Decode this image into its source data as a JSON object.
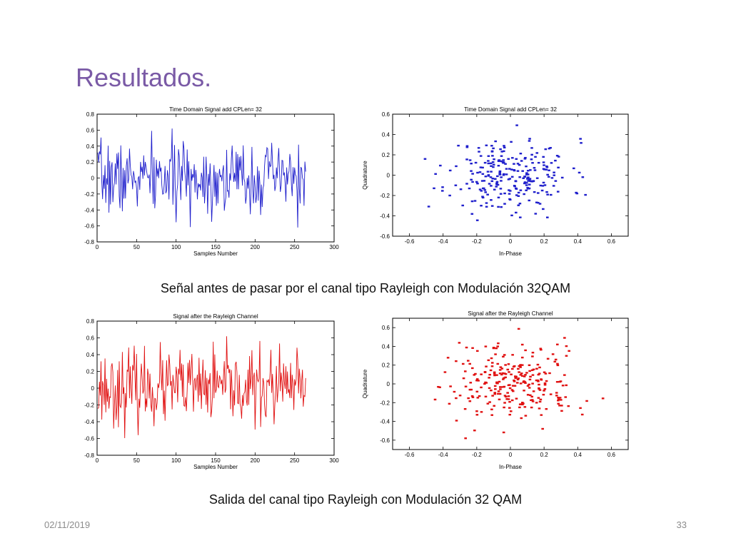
{
  "slide": {
    "title": "Resultados.",
    "caption_top": "Señal antes de pasar por el canal tipo Rayleigh con Modulación 32QAM",
    "caption_bottom": "Salida del canal tipo Rayleigh con Modulación 32 QAM",
    "date": "02/11/2019",
    "page_number": "33"
  },
  "chart_data": [
    {
      "type": "line",
      "title": "Time Domain Signal add CPLen= 32",
      "xlabel": "Samples Number",
      "ylabel": "",
      "xlim": [
        0,
        300
      ],
      "ylim": [
        -0.8,
        0.8
      ],
      "xticks": [
        0,
        50,
        100,
        150,
        200,
        250,
        300
      ],
      "yticks": [
        -0.8,
        -0.6,
        -0.4,
        -0.2,
        0,
        0.2,
        0.4,
        0.6,
        0.8
      ],
      "color": "#1f1fcc",
      "series": [
        {
          "x_start": 1,
          "x_end": 264,
          "noise_level": 0.22,
          "seed": 7
        }
      ]
    },
    {
      "type": "scatter",
      "title": "Time Domain Signal add CPLen= 32",
      "xlabel": "In-Phase",
      "ylabel": "Quadrature",
      "xlim": [
        -0.7,
        0.7
      ],
      "ylim": [
        -0.6,
        0.6
      ],
      "xticks": [
        -0.6,
        -0.4,
        -0.2,
        0,
        0.2,
        0.4,
        0.6
      ],
      "yticks": [
        -0.6,
        -0.4,
        -0.2,
        0,
        0.2,
        0.4,
        0.6
      ],
      "color": "#1f1fcc",
      "series": [
        {
          "n_points": 260,
          "spread": 0.18,
          "seed": 11
        }
      ]
    },
    {
      "type": "line",
      "title": "Signal after the Rayleigh Channel",
      "xlabel": "Samples Number",
      "ylabel": "",
      "xlim": [
        0,
        300
      ],
      "ylim": [
        -0.8,
        0.8
      ],
      "xticks": [
        0,
        50,
        100,
        150,
        200,
        250,
        300
      ],
      "yticks": [
        -0.8,
        -0.6,
        -0.4,
        -0.2,
        0,
        0.2,
        0.4,
        0.6,
        0.8
      ],
      "color": "#e01010",
      "series": [
        {
          "x_start": 1,
          "x_end": 264,
          "noise_level": 0.22,
          "seed": 23
        }
      ]
    },
    {
      "type": "scatter",
      "title": "Signal after the Rayleigh Channel",
      "xlabel": "In-Phase",
      "ylabel": "Quadrature",
      "xlim": [
        -0.7,
        0.7
      ],
      "ylim": [
        -0.7,
        0.7
      ],
      "xticks": [
        -0.6,
        -0.4,
        -0.2,
        0,
        0.2,
        0.4,
        0.6
      ],
      "yticks": [
        -0.6,
        -0.4,
        -0.2,
        0,
        0.2,
        0.4,
        0.6
      ],
      "color": "#e01010",
      "series": [
        {
          "n_points": 270,
          "spread": 0.2,
          "seed": 31
        }
      ]
    }
  ]
}
